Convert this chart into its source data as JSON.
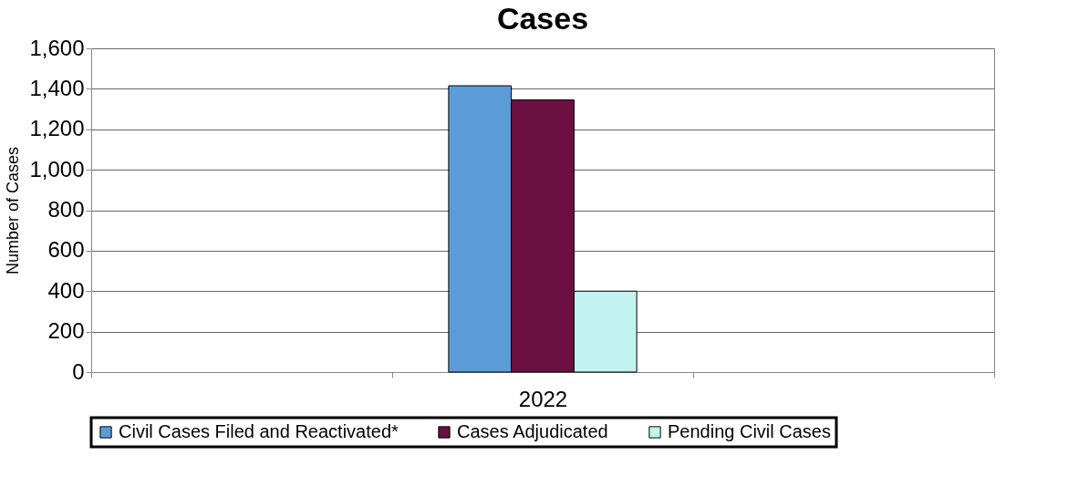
{
  "chart_data": {
    "type": "bar",
    "title": "Cases",
    "ylabel": "Number of Cases",
    "categories": [
      null,
      "2022",
      null
    ],
    "series": [
      {
        "name": "Civil Cases Filed and Reactivated*",
        "color": "#5b9bd8",
        "values": [
          null,
          1415,
          null
        ]
      },
      {
        "name": "Cases Adjudicated",
        "color": "#6b1040",
        "values": [
          null,
          1345,
          null
        ]
      },
      {
        "name": "Pending Civil Cases",
        "color": "#c2f3f0",
        "values": [
          null,
          400,
          null
        ]
      }
    ],
    "ylim": [
      0,
      1600
    ],
    "yticks": [
      0,
      {
        "value": 200,
        "label": "200"
      },
      {
        "value": 400,
        "label": "400"
      },
      {
        "value": 600,
        "label": "600"
      },
      {
        "value": 800,
        "label": "800"
      },
      {
        "value": 1000,
        "label": "1,000"
      },
      {
        "value": 1200,
        "label": "1,200"
      },
      {
        "value": 1400,
        "label": "1,400"
      },
      {
        "value": 1600,
        "label": "1,600"
      }
    ],
    "grid": "y",
    "legend": "bottom"
  }
}
